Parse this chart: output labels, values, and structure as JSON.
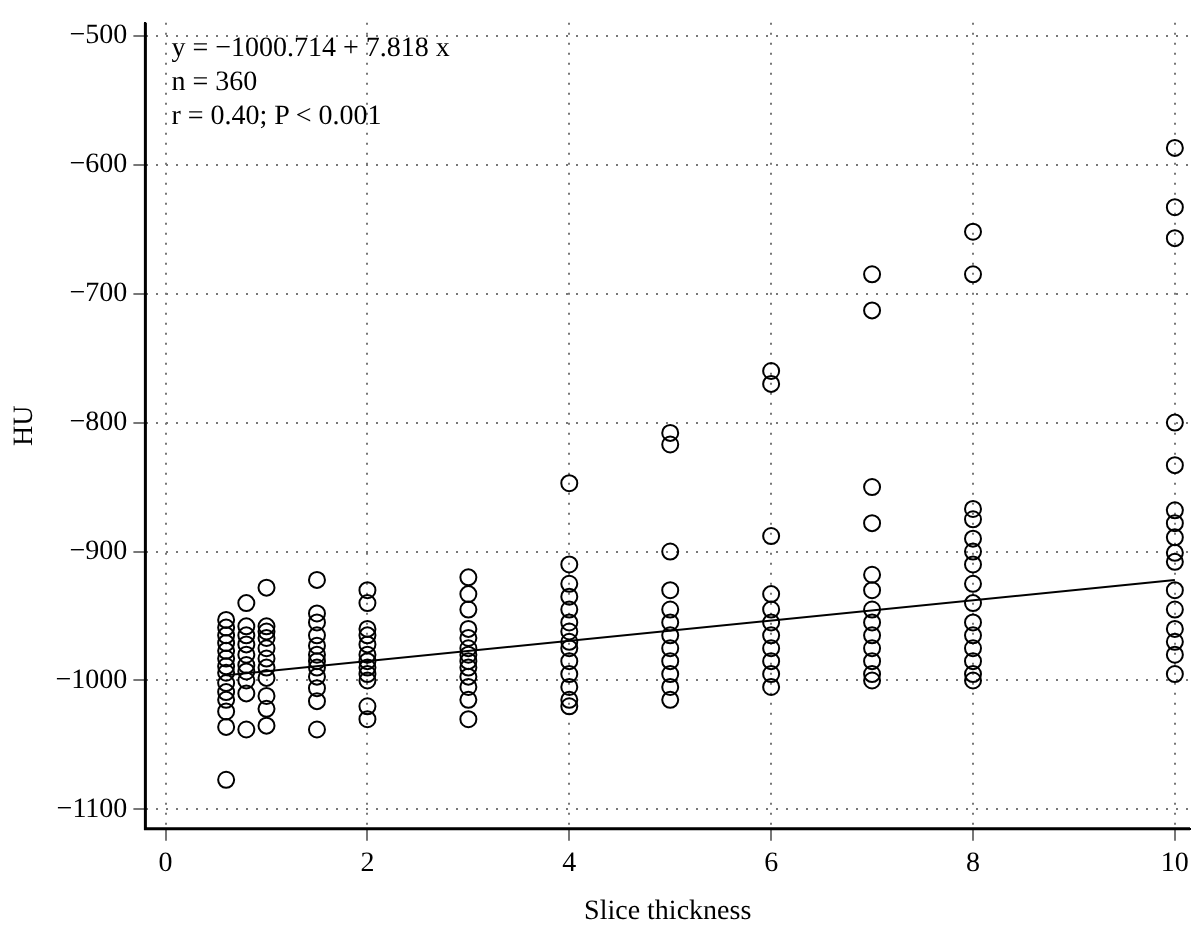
{
  "chart_data": {
    "type": "scatter",
    "xlabel": "Slice thickness",
    "ylabel": "HU",
    "xlim": [
      -0.2,
      10.15
    ],
    "ylim": [
      -1115,
      -490
    ],
    "xticks": [
      0,
      2,
      4,
      6,
      8,
      10
    ],
    "yticks": [
      -1100,
      -1000,
      -900,
      -800,
      -700,
      -600,
      -500
    ],
    "grid": true,
    "legend": false,
    "marker": "circle",
    "annotations": [
      "y = −1000.714 + 7.818 x",
      "n = 360",
      "r = 0.40; P < 0.001"
    ],
    "series": [
      {
        "type": "scatter",
        "color": "#000000",
        "x": [
          0.6,
          0.6,
          0.6,
          0.6,
          0.6,
          0.6,
          0.6,
          0.6,
          0.6,
          0.6,
          0.6,
          0.6,
          0.6,
          0.6,
          0.8,
          0.8,
          0.8,
          0.8,
          0.8,
          0.8,
          0.8,
          0.8,
          0.8,
          0.8,
          1,
          1,
          1,
          1,
          1,
          1,
          1,
          1,
          1,
          1,
          1,
          1.5,
          1.5,
          1.5,
          1.5,
          1.5,
          1.5,
          1.5,
          1.5,
          1.5,
          1.5,
          1.5,
          1.5,
          2,
          2,
          2,
          2,
          2,
          2,
          2,
          2,
          2,
          2,
          2,
          2,
          3,
          3,
          3,
          3,
          3,
          3,
          3,
          3,
          3,
          3,
          3,
          3,
          3,
          4,
          4,
          4,
          4,
          4,
          4,
          4,
          4,
          4,
          4,
          4,
          4,
          4,
          4,
          5,
          5,
          5,
          5,
          5,
          5,
          5,
          5,
          5,
          5,
          5,
          5,
          6,
          6,
          6,
          6,
          6,
          6,
          6,
          6,
          6,
          6,
          6,
          7,
          7,
          7,
          7,
          7,
          7,
          7,
          7,
          7,
          7,
          7,
          7,
          7,
          8,
          8,
          8,
          8,
          8,
          8,
          8,
          8,
          8,
          8,
          8,
          8,
          8,
          8,
          8,
          10,
          10,
          10,
          10,
          10,
          10,
          10,
          10,
          10,
          10,
          10,
          10,
          10,
          10,
          10,
          10
        ],
        "values": [
          -953,
          -959,
          -965,
          -971,
          -977,
          -983,
          -989,
          -994,
          -1002,
          -1009,
          -1015,
          -1024,
          -1036,
          -1077,
          -940,
          -958,
          -965,
          -972,
          -980,
          -988,
          -993,
          -1000,
          -1010,
          -1038,
          -928,
          -958,
          -962,
          -967,
          -975,
          -983,
          -990,
          -998,
          -1012,
          -1022,
          -1035,
          -922,
          -948,
          -955,
          -965,
          -973,
          -980,
          -985,
          -990,
          -997,
          -1006,
          -1016,
          -1038,
          -930,
          -940,
          -960,
          -965,
          -972,
          -980,
          -985,
          -990,
          -995,
          -1000,
          -1020,
          -1030,
          -920,
          -933,
          -945,
          -960,
          -967,
          -975,
          -980,
          -985,
          -990,
          -997,
          -1005,
          -1015,
          -1030,
          -847,
          -910,
          -925,
          -935,
          -945,
          -955,
          -962,
          -970,
          -975,
          -985,
          -995,
          -1005,
          -1015,
          -1020,
          -808,
          -817,
          -900,
          -930,
          -945,
          -955,
          -965,
          -975,
          -985,
          -995,
          -1005,
          -1015,
          -760,
          -770,
          -888,
          -933,
          -945,
          -955,
          -965,
          -975,
          -985,
          -995,
          -1005,
          -685,
          -713,
          -850,
          -878,
          -918,
          -930,
          -945,
          -955,
          -965,
          -975,
          -985,
          -995,
          -1000,
          -652,
          -685,
          -867,
          -875,
          -890,
          -900,
          -910,
          -925,
          -940,
          -955,
          -965,
          -975,
          -985,
          -995,
          -1000,
          -587,
          -633,
          -657,
          -800,
          -833,
          -868,
          -878,
          -889,
          -901,
          -908,
          -930,
          -945,
          -960,
          -970,
          -980,
          -995
        ]
      },
      {
        "type": "line",
        "color": "#000000",
        "x": [
          0.6,
          10
        ],
        "values": [
          -996,
          -922
        ],
        "marker": "none"
      }
    ]
  }
}
